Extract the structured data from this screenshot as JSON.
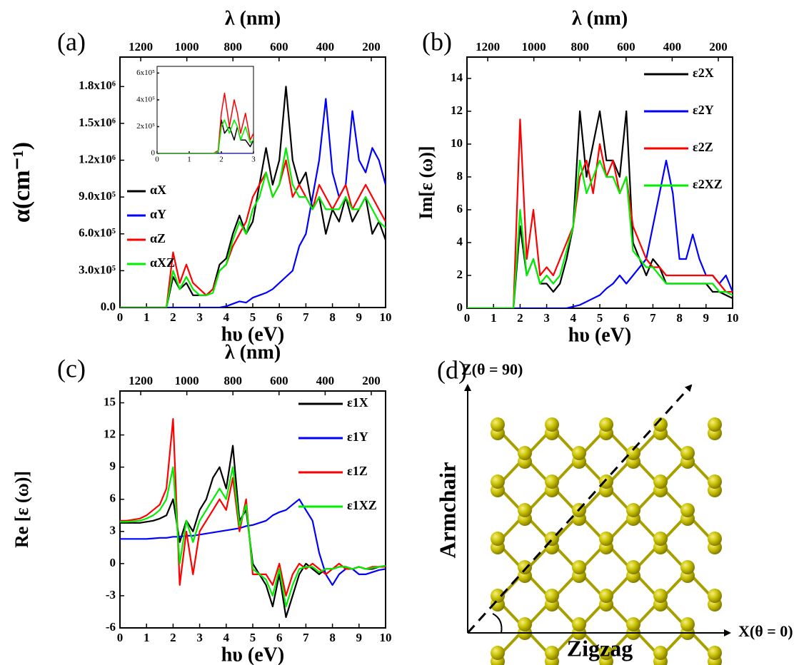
{
  "chart_data": [
    {
      "type": "line",
      "panel_label": "(a)",
      "xlabel": "hυ (eV)",
      "x2label": "λ (nm)",
      "ylabel": "α(cm⁻¹)",
      "xlim": [
        0,
        10
      ],
      "xticks": [
        0,
        1,
        2,
        3,
        4,
        5,
        6,
        7,
        8,
        9,
        10
      ],
      "x2lim": [
        1290,
        138
      ],
      "x2ticks": [
        1200,
        1000,
        800,
        600,
        400,
        200
      ],
      "ylim": [
        0,
        2040000
      ],
      "yticks": [
        {
          "value": 0,
          "label": "0.0"
        },
        {
          "value": 300000,
          "label": "3.0x10⁵"
        },
        {
          "value": 600000,
          "label": "6.0x10⁵"
        },
        {
          "value": 900000,
          "label": "9.0x10⁵"
        },
        {
          "value": 1200000,
          "label": "1.2x10⁶"
        },
        {
          "value": 1500000,
          "label": "1.5x10⁶"
        },
        {
          "value": 1800000,
          "label": "1.8x10⁶"
        }
      ],
      "x": [
        0,
        0.25,
        0.5,
        0.75,
        1,
        1.25,
        1.5,
        1.75,
        2,
        2.25,
        2.5,
        2.75,
        3,
        3.25,
        3.5,
        3.75,
        4,
        4.25,
        4.5,
        4.75,
        5,
        5.25,
        5.5,
        5.75,
        6,
        6.25,
        6.5,
        6.75,
        7,
        7.25,
        7.5,
        7.75,
        8,
        8.25,
        8.5,
        8.75,
        9,
        9.25,
        9.5,
        9.75,
        10
      ],
      "series": [
        {
          "name": "αX",
          "color": "#000000",
          "values": [
            0,
            0,
            0,
            0,
            0,
            0,
            0,
            0,
            250000.0,
            150000.0,
            200000.0,
            100000.0,
            100000.0,
            100000.0,
            150000.0,
            350000.0,
            400000.0,
            600000.0,
            750000.0,
            600000.0,
            700000.0,
            1000000.0,
            1300000.0,
            1000000.0,
            1200000.0,
            1800000.0,
            1200000.0,
            1000000.0,
            1100000.0,
            800000.0,
            900000.0,
            600000.0,
            800000.0,
            700000.0,
            900000.0,
            700000.0,
            800000.0,
            900000.0,
            600000.0,
            700000.0,
            550000.0
          ]
        },
        {
          "name": "αY",
          "color": "#0000ff",
          "values": [
            0,
            0,
            0,
            0,
            0,
            0,
            0,
            0,
            0,
            0,
            0,
            0,
            0,
            0,
            0,
            0,
            10000.0,
            30000.0,
            50000.0,
            40000.0,
            80000.0,
            100000.0,
            120000.0,
            150000.0,
            200000.0,
            250000.0,
            300000.0,
            500000.0,
            600000.0,
            900000.0,
            1200000.0,
            1700000.0,
            1100000.0,
            900000.0,
            1000000.0,
            1600000.0,
            1200000.0,
            1100000.0,
            1300000.0,
            1200000.0,
            1000000.0
          ]
        },
        {
          "name": "αZ",
          "color": "#ff0000",
          "values": [
            0,
            0,
            0,
            0,
            0,
            0,
            0,
            0,
            450000.0,
            200000.0,
            350000.0,
            200000.0,
            150000.0,
            100000.0,
            150000.0,
            300000.0,
            350000.0,
            500000.0,
            600000.0,
            700000.0,
            900000.0,
            1000000.0,
            1100000.0,
            900000.0,
            1000000.0,
            1200000.0,
            900000.0,
            1000000.0,
            900000.0,
            800000.0,
            1000000.0,
            900000.0,
            800000.0,
            900000.0,
            1000000.0,
            800000.0,
            900000.0,
            1000000.0,
            900000.0,
            800000.0,
            700000.0
          ]
        },
        {
          "name": "αXZ",
          "color": "#00ee00",
          "values": [
            0,
            0,
            0,
            0,
            0,
            0,
            0,
            0,
            300000.0,
            150000.0,
            250000.0,
            150000.0,
            100000.0,
            100000.0,
            120000.0,
            300000.0,
            350000.0,
            550000.0,
            700000.0,
            600000.0,
            800000.0,
            900000.0,
            1100000.0,
            900000.0,
            1000000.0,
            1300000.0,
            1000000.0,
            900000.0,
            900000.0,
            800000.0,
            900000.0,
            800000.0,
            800000.0,
            800000.0,
            900000.0,
            800000.0,
            800000.0,
            900000.0,
            800000.0,
            700000.0,
            650000.0
          ]
        }
      ],
      "inset": {
        "type": "line",
        "xlim": [
          0,
          3
        ],
        "xticks": [
          0,
          1,
          2,
          3
        ],
        "ylim": [
          0,
          650000
        ],
        "yticks": [
          0,
          {
            "value": 200000,
            "label": "2x10⁵"
          },
          {
            "value": 400000,
            "label": "4x10⁵"
          },
          {
            "value": 600000,
            "label": "6x10⁵"
          }
        ],
        "x": [
          0,
          0.5,
          1,
          1.5,
          1.75,
          1.9,
          2,
          2.1,
          2.25,
          2.4,
          2.5,
          2.6,
          2.75,
          2.9,
          3
        ],
        "series": [
          {
            "color": "#000000",
            "values": [
              0,
              0,
              0,
              0,
              0,
              0,
              250000.0,
              150000.0,
              200000.0,
              100000.0,
              200000.0,
              100000.0,
              100000.0,
              50000.0,
              100000.0
            ]
          },
          {
            "color": "#0000ff",
            "values": [
              0,
              0,
              0,
              0,
              0,
              0,
              0,
              0,
              0,
              0,
              0,
              0,
              0,
              0,
              0
            ]
          },
          {
            "color": "#ff0000",
            "values": [
              0,
              0,
              0,
              0,
              0,
              20000.0,
              300000.0,
              450000.0,
              200000.0,
              400000.0,
              300000.0,
              150000.0,
              300000.0,
              100000.0,
              150000.0
            ]
          },
          {
            "color": "#00ee00",
            "values": [
              0,
              0,
              0,
              0,
              0,
              10000.0,
              200000.0,
              250000.0,
              150000.0,
              250000.0,
              200000.0,
              100000.0,
              200000.0,
              80000.0,
              100000.0
            ]
          }
        ]
      }
    },
    {
      "type": "line",
      "panel_label": "(b)",
      "xlabel": "hυ (eV)",
      "x2label": "λ (nm)",
      "ylabel": "Im[ε (ω)]",
      "xlim": [
        0,
        10
      ],
      "xticks": [
        0,
        1,
        2,
        3,
        4,
        5,
        6,
        7,
        8,
        9,
        10
      ],
      "x2lim": [
        1290,
        138
      ],
      "x2ticks": [
        1200,
        1000,
        800,
        600,
        400,
        200
      ],
      "ylim": [
        0,
        15.3
      ],
      "yticks": [
        0,
        2,
        4,
        6,
        8,
        10,
        12,
        14
      ],
      "x": [
        0,
        0.25,
        0.5,
        0.75,
        1,
        1.25,
        1.5,
        1.75,
        2,
        2.25,
        2.5,
        2.75,
        3,
        3.25,
        3.5,
        3.75,
        4,
        4.25,
        4.5,
        4.75,
        5,
        5.25,
        5.5,
        5.75,
        6,
        6.25,
        6.5,
        6.75,
        7,
        7.25,
        7.5,
        7.75,
        8,
        8.25,
        8.5,
        8.75,
        9,
        9.25,
        9.5,
        9.75,
        10
      ],
      "series": [
        {
          "name": "ε2X",
          "color": "#000000",
          "values": [
            0,
            0,
            0,
            0,
            0,
            0,
            0,
            0,
            5,
            2,
            3,
            1.5,
            1.5,
            1,
            1.5,
            3,
            5,
            12,
            8,
            10,
            12,
            9,
            9,
            8,
            12,
            4,
            3,
            2,
            3,
            2.5,
            1.5,
            1.5,
            1.5,
            1.5,
            1.5,
            1.5,
            1.5,
            1,
            1,
            0.8,
            0.6
          ]
        },
        {
          "name": "ε2Y",
          "color": "#0000ff",
          "values": [
            0,
            0,
            0,
            0,
            0,
            0,
            0,
            0,
            0,
            0,
            0,
            0,
            0,
            0,
            0,
            0,
            0.1,
            0.2,
            0.4,
            0.6,
            0.8,
            1.2,
            1.5,
            2,
            1.5,
            2,
            2.5,
            3,
            5,
            7,
            9,
            7,
            3,
            3,
            4.5,
            3,
            2,
            2,
            1.5,
            2,
            1
          ]
        },
        {
          "name": "ε2Z",
          "color": "#ff0000",
          "values": [
            0,
            0,
            0,
            0,
            0,
            0,
            0,
            0,
            11.5,
            3,
            6,
            2,
            2.5,
            2,
            3,
            4,
            5,
            8,
            9,
            7,
            10,
            8,
            9,
            7,
            8,
            5,
            4,
            3,
            2.5,
            2.5,
            2,
            2,
            2,
            2,
            2,
            2,
            2,
            2,
            1.5,
            1,
            1
          ]
        },
        {
          "name": "ε2XZ",
          "color": "#00ee00",
          "values": [
            0,
            0,
            0,
            0,
            0,
            0,
            0,
            0,
            6,
            2,
            3,
            1.5,
            2,
            1.5,
            2,
            3.5,
            5,
            9,
            7,
            8,
            9,
            8,
            8,
            7,
            8,
            3.5,
            3,
            2.5,
            2.5,
            2,
            1.5,
            1.5,
            1.5,
            1.5,
            1.5,
            1.5,
            1.5,
            1.5,
            1,
            1,
            0.8
          ]
        }
      ]
    },
    {
      "type": "line",
      "panel_label": "(c)",
      "xlabel": "hυ (eV)",
      "x2label": "λ (nm)",
      "ylabel": "Re [ε (ω)]",
      "xlim": [
        0,
        10
      ],
      "xticks": [
        0,
        1,
        2,
        3,
        4,
        5,
        6,
        7,
        8,
        9,
        10
      ],
      "x2lim": [
        1290,
        138
      ],
      "x2ticks": [
        1200,
        1000,
        800,
        600,
        400,
        200
      ],
      "ylim": [
        -6,
        16.1
      ],
      "yticks": [
        -6,
        -3,
        0,
        3,
        6,
        9,
        12,
        15
      ],
      "x": [
        0,
        0.25,
        0.5,
        0.75,
        1,
        1.25,
        1.5,
        1.75,
        2,
        2.25,
        2.5,
        2.75,
        3,
        3.25,
        3.5,
        3.75,
        4,
        4.25,
        4.5,
        4.75,
        5,
        5.25,
        5.5,
        5.75,
        6,
        6.25,
        6.5,
        6.75,
        7,
        7.25,
        7.5,
        7.75,
        8,
        8.25,
        8.5,
        8.75,
        9,
        9.25,
        9.5,
        9.75,
        10
      ],
      "series": [
        {
          "name": "ε1X",
          "color": "#000000",
          "values": [
            3.8,
            3.8,
            3.8,
            3.8,
            3.9,
            4,
            4.2,
            4.5,
            6,
            2,
            4,
            3,
            5,
            6,
            8,
            9,
            7,
            11,
            4,
            5,
            0,
            -1,
            -2,
            -4,
            -1,
            -5,
            -3,
            -1,
            0,
            -0.5,
            -1,
            -0.5,
            -0.5,
            -0.3,
            -0.3,
            -0.5,
            -0.3,
            -0.5,
            -0.5,
            -0.3,
            -0.2
          ]
        },
        {
          "name": "ε1Y",
          "color": "#0000ff",
          "values": [
            2.3,
            2.3,
            2.3,
            2.3,
            2.3,
            2.35,
            2.4,
            2.4,
            2.5,
            2.5,
            2.6,
            2.6,
            2.7,
            2.8,
            2.9,
            3,
            3.1,
            3.2,
            3.3,
            3.5,
            3.6,
            3.8,
            4,
            4.5,
            4.8,
            5,
            5.5,
            6,
            5,
            4,
            1,
            -1,
            -2,
            -1,
            -0.5,
            -0.5,
            -1,
            -1,
            -0.8,
            -0.6,
            -0.5
          ]
        },
        {
          "name": "ε1Z",
          "color": "#ff0000",
          "values": [
            4,
            4,
            4.1,
            4.2,
            4.5,
            5,
            5.5,
            7,
            13.5,
            -2,
            3,
            -1,
            3,
            4,
            5,
            6,
            5,
            8,
            3,
            6,
            -1,
            -1,
            -1,
            -2,
            0,
            -3,
            -1,
            0,
            -0.5,
            0,
            -0.5,
            -1,
            -0.5,
            0,
            -0.5,
            -0.5,
            -0.3,
            -0.5,
            -0.3,
            -0.3,
            -0.3
          ]
        },
        {
          "name": "ε1XZ",
          "color": "#00ee00",
          "values": [
            3.9,
            3.9,
            3.95,
            4,
            4.2,
            4.5,
            5,
            6,
            9,
            0,
            4,
            2,
            4,
            5,
            6,
            7,
            6,
            9,
            3.5,
            5.5,
            -0.5,
            -1,
            -1.5,
            -3,
            -0.5,
            -4,
            -2,
            -0.5,
            -0.3,
            -0.3,
            -0.8,
            -0.5,
            -0.5,
            -0.3,
            -0.3,
            -0.5,
            -0.3,
            -0.5,
            -0.4,
            -0.3,
            -0.2
          ]
        }
      ]
    }
  ],
  "diagram": {
    "panel_label": "(d)",
    "z_axis": "Z(θ = 90)",
    "x_axis": "X(θ = 0)",
    "vertical_label": "Armchair",
    "horizontal_label": "Zigzag"
  }
}
